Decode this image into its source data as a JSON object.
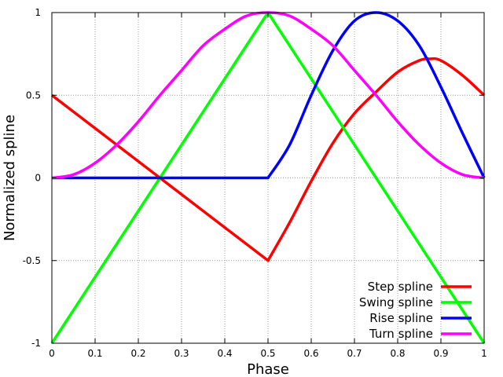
{
  "chart_data": {
    "type": "line",
    "title": "",
    "xlabel": "Phase",
    "ylabel": "Normalized spline",
    "xlim": [
      0,
      1
    ],
    "ylim": [
      -1,
      1
    ],
    "grid": true,
    "legend_position": "bottom-right",
    "x_ticks": [
      {
        "value": 0,
        "label": "0"
      },
      {
        "value": 0.1,
        "label": "0.1"
      },
      {
        "value": 0.2,
        "label": "0.2"
      },
      {
        "value": 0.3,
        "label": "0.3"
      },
      {
        "value": 0.4,
        "label": "0.4"
      },
      {
        "value": 0.5,
        "label": "0.5"
      },
      {
        "value": 0.6,
        "label": "0.6"
      },
      {
        "value": 0.7,
        "label": "0.7"
      },
      {
        "value": 0.8,
        "label": "0.8"
      },
      {
        "value": 0.9,
        "label": "0.9"
      },
      {
        "value": 1,
        "label": "1"
      }
    ],
    "y_ticks": [
      {
        "value": -1,
        "label": "-1"
      },
      {
        "value": -0.5,
        "label": "-0.5"
      },
      {
        "value": 0,
        "label": "0"
      },
      {
        "value": 0.5,
        "label": "0.5"
      },
      {
        "value": 1,
        "label": "1"
      }
    ],
    "series": [
      {
        "name": "Step spline",
        "color": "#ff0000",
        "x": [
          0,
          0.5,
          0.55,
          0.6,
          0.65,
          0.7,
          0.75,
          0.8,
          0.85,
          0.875,
          0.9,
          0.95,
          1
        ],
        "y": [
          0.5,
          -0.5,
          -0.27,
          -0.02,
          0.21,
          0.39,
          0.52,
          0.64,
          0.71,
          0.72,
          0.71,
          0.62,
          0.5
        ]
      },
      {
        "name": "Swing spline",
        "color": "#00ff00",
        "x": [
          0,
          0.5,
          1
        ],
        "y": [
          -1,
          1,
          -1
        ]
      },
      {
        "name": "Rise spline",
        "color": "#0000ff",
        "x": [
          0,
          0.5,
          0.55,
          0.6,
          0.65,
          0.7,
          0.75,
          0.8,
          0.85,
          0.9,
          0.95,
          1
        ],
        "y": [
          0,
          0,
          0.2,
          0.5,
          0.77,
          0.95,
          1,
          0.95,
          0.8,
          0.55,
          0.27,
          0
        ]
      },
      {
        "name": "Turn spline",
        "color": "#ff00ff",
        "x": [
          0,
          0.05,
          0.1,
          0.15,
          0.2,
          0.25,
          0.3,
          0.35,
          0.4,
          0.45,
          0.5,
          0.55,
          0.6,
          0.65,
          0.7,
          0.75,
          0.8,
          0.85,
          0.9,
          0.95,
          1
        ],
        "y": [
          0,
          0.02,
          0.09,
          0.2,
          0.34,
          0.5,
          0.65,
          0.8,
          0.9,
          0.98,
          1,
          0.98,
          0.9,
          0.8,
          0.65,
          0.5,
          0.34,
          0.2,
          0.09,
          0.02,
          0
        ]
      }
    ]
  }
}
